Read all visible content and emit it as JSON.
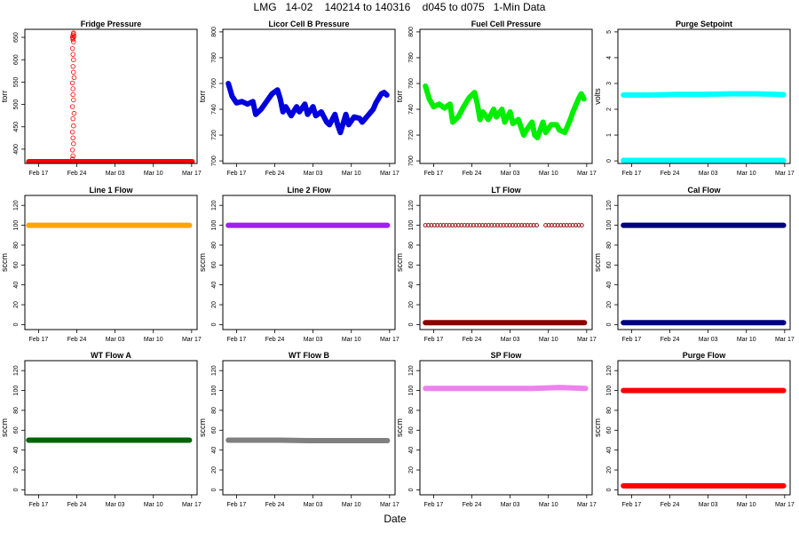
{
  "page": {
    "title": "LMG   14-02    140214 to 140316    d045 to d075   1-Min Data",
    "xlabel": "Date"
  },
  "chart_data": [
    {
      "type": "scatter",
      "title": "Fridge Pressure",
      "ylabel": "torr",
      "color": "#ff0000",
      "ylim": [
        368,
        668
      ],
      "yticks": [
        400,
        450,
        500,
        550,
        600,
        650
      ],
      "xticks": [
        "Feb 17",
        "Feb 24",
        "Mar 03",
        "Mar 10",
        "Mar 17"
      ],
      "series": [
        {
          "kind": "line",
          "x": [
            15.2,
            26.3,
            45.1
          ],
          "y": [
            372,
            372,
            372
          ]
        },
        {
          "kind": "points",
          "x": [
            23.2,
            23.3,
            23.2,
            23.4,
            23.3,
            23.2,
            23.4,
            23.3,
            23.5,
            23.2,
            23.4,
            23.3,
            23.3,
            23.2,
            23.5,
            23.4,
            23.3,
            23.4,
            23.3,
            23.2,
            23.4,
            23.3,
            23.5,
            23.3,
            23.4,
            23.2,
            23.3,
            23.4
          ],
          "y": [
            378,
            385,
            398,
            412,
            425,
            438,
            452,
            468,
            480,
            495,
            510,
            522,
            535,
            548,
            560,
            572,
            585,
            600,
            612,
            625,
            640,
            648,
            652,
            655,
            658,
            650,
            645,
            660
          ]
        }
      ]
    },
    {
      "type": "line",
      "title": "Licor Cell B Pressure",
      "ylabel": "torr",
      "color": "#0000dd",
      "ylim": [
        698,
        802
      ],
      "yticks": [
        700,
        720,
        740,
        760,
        780,
        800
      ],
      "xticks": [
        "Feb 17",
        "Feb 24",
        "Mar 03",
        "Mar 10",
        "Mar 17"
      ],
      "series": [
        {
          "x": [
            15.5,
            16.2,
            17.0,
            18.0,
            19.0,
            20.0,
            20.5,
            21.5,
            22.5,
            23.5,
            24.5,
            25.0,
            25.5,
            26.0,
            27.0,
            28.0,
            28.5,
            29.5,
            30.0,
            31.0,
            31.5,
            32.5,
            33.5,
            34.0,
            35.0,
            35.5,
            36.0,
            37.0,
            37.5,
            38.5,
            39.5,
            40.0,
            41.0,
            42.0,
            42.5,
            43.5,
            44.0,
            44.5
          ],
          "y": [
            760,
            750,
            745,
            746,
            744,
            746,
            736,
            740,
            746,
            752,
            755,
            748,
            738,
            742,
            735,
            742,
            738,
            744,
            736,
            742,
            735,
            738,
            730,
            728,
            736,
            728,
            722,
            736,
            728,
            734,
            733,
            730,
            735,
            740,
            745,
            752,
            753,
            751
          ]
        }
      ]
    },
    {
      "type": "line",
      "title": "Fuel Cell Pressure",
      "ylabel": "torr",
      "color": "#00ee00",
      "ylim": [
        698,
        802
      ],
      "yticks": [
        700,
        720,
        740,
        760,
        780,
        800
      ],
      "xticks": [
        "Feb 17",
        "Feb 24",
        "Mar 03",
        "Mar 10",
        "Mar 17"
      ],
      "series": [
        {
          "x": [
            15.5,
            16.2,
            17.0,
            18.0,
            19.0,
            20.0,
            20.5,
            21.5,
            22.5,
            23.5,
            24.5,
            25.0,
            25.5,
            26.0,
            27.0,
            28.0,
            28.5,
            29.5,
            30.0,
            31.0,
            31.5,
            32.5,
            33.5,
            34.0,
            35.0,
            35.5,
            36.0,
            37.0,
            37.5,
            38.5,
            39.5,
            40.0,
            41.0,
            42.0,
            42.5,
            43.5,
            44.0,
            44.5
          ],
          "y": [
            758,
            748,
            742,
            744,
            741,
            744,
            730,
            734,
            742,
            749,
            753,
            744,
            732,
            738,
            732,
            740,
            734,
            740,
            730,
            738,
            729,
            732,
            720,
            724,
            730,
            720,
            718,
            730,
            722,
            728,
            728,
            724,
            722,
            732,
            738,
            748,
            752,
            748
          ]
        }
      ]
    },
    {
      "type": "line",
      "title": "Purge Setpoint",
      "ylabel": "volts",
      "color": "#00ffff",
      "ylim": [
        -0.1,
        5.1
      ],
      "yticks": [
        0,
        1,
        2,
        3,
        4,
        5
      ],
      "xticks": [
        "Feb 17",
        "Feb 24",
        "Mar 03",
        "Mar 10",
        "Mar 17"
      ],
      "series": [
        {
          "x": [
            15.5,
            20.0,
            25.0,
            30.0,
            35.0,
            40.0,
            44.8
          ],
          "y": [
            2.55,
            2.55,
            2.58,
            2.58,
            2.6,
            2.6,
            2.57
          ]
        },
        {
          "x": [
            15.5,
            44.8
          ],
          "y": [
            0.02,
            0.02
          ]
        }
      ]
    },
    {
      "type": "line",
      "title": "Line 1 Flow",
      "ylabel": "sccm",
      "color": "#ffa500",
      "ylim": [
        -5,
        130
      ],
      "yticks": [
        0,
        20,
        40,
        60,
        80,
        100,
        120
      ],
      "xticks": [
        "Feb 17",
        "Feb 24",
        "Mar 03",
        "Mar 10",
        "Mar 17"
      ],
      "series": [
        {
          "x": [
            15.2,
            44.6
          ],
          "y": [
            100,
            100
          ]
        }
      ]
    },
    {
      "type": "line",
      "title": "Line 2 Flow",
      "ylabel": "sccm",
      "color": "#a020f0",
      "ylim": [
        -5,
        130
      ],
      "yticks": [
        0,
        20,
        40,
        60,
        80,
        100,
        120
      ],
      "xticks": [
        "Feb 17",
        "Feb 24",
        "Mar 03",
        "Mar 10",
        "Mar 17"
      ],
      "series": [
        {
          "x": [
            15.5,
            44.6
          ],
          "y": [
            100,
            100
          ]
        }
      ]
    },
    {
      "type": "scatter",
      "title": "LT Flow",
      "ylabel": "sccm",
      "color": "#8b0000",
      "ylim": [
        -5,
        130
      ],
      "yticks": [
        0,
        20,
        40,
        60,
        80,
        100,
        120
      ],
      "xticks": [
        "Feb 17",
        "Feb 24",
        "Mar 03",
        "Mar 10",
        "Mar 17"
      ],
      "series": [
        {
          "kind": "hollow-dots",
          "x_start": 15.5,
          "x_end": 44.6,
          "step": 0.55,
          "gap": [
            36.0,
            37.0
          ],
          "y": 100
        },
        {
          "kind": "line",
          "x": [
            15.5,
            44.6
          ],
          "y": [
            2,
            2
          ]
        }
      ]
    },
    {
      "type": "line",
      "title": "Cal Flow",
      "ylabel": "sccm",
      "color": "#000080",
      "ylim": [
        -5,
        130
      ],
      "yticks": [
        0,
        20,
        40,
        60,
        80,
        100,
        120
      ],
      "xticks": [
        "Feb 17",
        "Feb 24",
        "Mar 03",
        "Mar 10",
        "Mar 17"
      ],
      "series": [
        {
          "x": [
            15.5,
            44.8
          ],
          "y": [
            100,
            100
          ]
        },
        {
          "x": [
            15.5,
            44.8
          ],
          "y": [
            2,
            2
          ]
        }
      ]
    },
    {
      "type": "line",
      "title": "WT Flow A",
      "ylabel": "sccm",
      "color": "#006400",
      "ylim": [
        -5,
        130
      ],
      "yticks": [
        0,
        20,
        40,
        60,
        80,
        100,
        120
      ],
      "xticks": [
        "Feb 17",
        "Feb 24",
        "Mar 03",
        "Mar 10",
        "Mar 17"
      ],
      "series": [
        {
          "x": [
            15.2,
            44.6
          ],
          "y": [
            50,
            50
          ]
        }
      ]
    },
    {
      "type": "line",
      "title": "WT Flow B",
      "ylabel": "sccm",
      "color": "#808080",
      "ylim": [
        -5,
        130
      ],
      "yticks": [
        0,
        20,
        40,
        60,
        80,
        100,
        120
      ],
      "xticks": [
        "Feb 17",
        "Feb 24",
        "Mar 03",
        "Mar 10",
        "Mar 17"
      ],
      "series": [
        {
          "x": [
            15.5,
            20.0,
            25.0,
            30.0,
            35.0,
            40.0,
            44.6
          ],
          "y": [
            50,
            50,
            50,
            49.5,
            49.5,
            49.5,
            49.5
          ]
        }
      ]
    },
    {
      "type": "line",
      "title": "SP Flow",
      "ylabel": "sccm",
      "color": "#ee82ee",
      "ylim": [
        -5,
        130
      ],
      "yticks": [
        0,
        20,
        40,
        60,
        80,
        100,
        120
      ],
      "xticks": [
        "Feb 17",
        "Feb 24",
        "Mar 03",
        "Mar 10",
        "Mar 17"
      ],
      "series": [
        {
          "x": [
            15.5,
            20.0,
            25.0,
            30.0,
            35.0,
            40.0,
            44.8
          ],
          "y": [
            102,
            102,
            102,
            102,
            102,
            103,
            102
          ]
        }
      ]
    },
    {
      "type": "line",
      "title": "Purge Flow",
      "ylabel": "sccm",
      "color": "#ff0000",
      "ylim": [
        -5,
        130
      ],
      "yticks": [
        0,
        20,
        40,
        60,
        80,
        100,
        120
      ],
      "xticks": [
        "Feb 17",
        "Feb 24",
        "Mar 03",
        "Mar 10",
        "Mar 17"
      ],
      "series": [
        {
          "x": [
            15.5,
            44.8
          ],
          "y": [
            100,
            100
          ]
        },
        {
          "x": [
            15.5,
            44.8
          ],
          "y": [
            4,
            4
          ]
        }
      ]
    }
  ]
}
